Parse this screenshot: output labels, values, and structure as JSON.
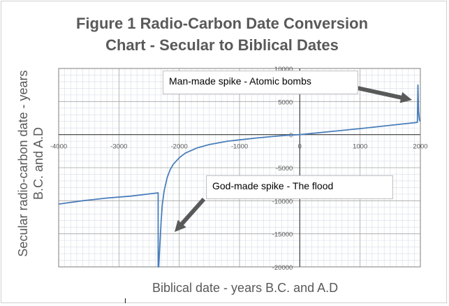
{
  "chart_data": {
    "type": "line",
    "title_line1": "Figure 1   Radio-Carbon Date Conversion",
    "title_line2": "Chart - Secular to Biblical Dates",
    "xlabel": "Biblical date - years B.C. and A.D",
    "ylabel_line1": "Secular radio-carbon date - years",
    "ylabel_line2": "B.C. and A.D",
    "xlim": [
      -4000,
      2000
    ],
    "ylim": [
      -20000,
      10000
    ],
    "x_ticks": [
      -4000,
      -3000,
      -2000,
      -1000,
      0,
      1000,
      2000
    ],
    "y_ticks": [
      10000,
      5000,
      0,
      -5000,
      -10000,
      -15000,
      -20000
    ],
    "x_tick_labels": [
      "-4000",
      "-3000",
      "-2000",
      "-1000",
      "0",
      "1000",
      "2000"
    ],
    "y_tick_labels": [
      "10000",
      "5000",
      "0",
      "-5000",
      "-10000",
      "-15000",
      "-20000"
    ],
    "grid": true,
    "series": [
      {
        "color": "#4a7ebb",
        "x": [
          -4000,
          -3600,
          -3200,
          -2800,
          -2350,
          -2350,
          -2340,
          -2320,
          -2300,
          -2280,
          -2250,
          -2200,
          -2150,
          -2100,
          -2000,
          -1900,
          -1700,
          -1500,
          -1200,
          -1000,
          -700,
          -400,
          -200,
          0,
          500,
          1000,
          1500,
          1950,
          1960,
          1970,
          1985,
          2000
        ],
        "y": [
          -10500,
          -10000,
          -9600,
          -9300,
          -8800,
          -20000,
          -20000,
          -16500,
          -13000,
          -10500,
          -8500,
          -6500,
          -5300,
          -4500,
          -3500,
          -2800,
          -2000,
          -1500,
          -1000,
          -800,
          -500,
          -250,
          -100,
          0,
          450,
          900,
          1400,
          1850,
          7500,
          3500,
          2200,
          2000
        ]
      }
    ],
    "annotations": [
      {
        "text": "Man-made spike - Atomic bombs"
      },
      {
        "text": "God-made spike - The flood"
      }
    ]
  },
  "cursor": "I"
}
